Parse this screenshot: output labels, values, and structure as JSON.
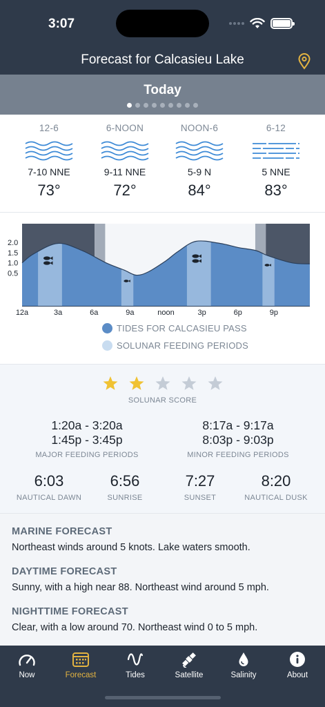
{
  "status": {
    "time": "3:07"
  },
  "header": {
    "title": "Forecast for Calcasieu Lake",
    "day": "Today",
    "page_count": 9,
    "active_page": 0
  },
  "forecast": [
    {
      "period": "12-6",
      "wind": "7-10 NNE",
      "temp": "73°",
      "wave_style": "curly"
    },
    {
      "period": "6-NOON",
      "wind": "9-11 NNE",
      "temp": "72°",
      "wave_style": "curly"
    },
    {
      "period": "NOON-6",
      "wind": "5-9 N",
      "temp": "84°",
      "wave_style": "curly"
    },
    {
      "period": "6-12",
      "wind": "5 NNE",
      "temp": "83°",
      "wave_style": "flat"
    }
  ],
  "tide": {
    "y_ticks": [
      "2.0",
      "1.5",
      "1.0",
      "0.5"
    ],
    "x_ticks": [
      "12a",
      "3a",
      "6a",
      "9a",
      "noon",
      "3p",
      "6p",
      "9p"
    ],
    "legend_tides": "TIDES FOR CALCASIEU PASS",
    "legend_solunar": "SOLUNAR FEEDING PERIODS",
    "colors": {
      "tide": "#5b8cc6",
      "solunar": "#c8dcf0",
      "night": "#4c5667",
      "twilight": "#a2abb8"
    },
    "heights": [
      [
        0,
        1.0
      ],
      [
        1,
        1.45
      ],
      [
        3,
        1.95
      ],
      [
        5,
        1.6
      ],
      [
        7,
        1.0
      ],
      [
        8.5,
        0.65
      ],
      [
        9.5,
        0.4
      ],
      [
        10.5,
        0.55
      ],
      [
        12,
        1.1
      ],
      [
        13,
        1.55
      ],
      [
        14.5,
        2.05
      ],
      [
        16.5,
        1.95
      ],
      [
        18,
        1.75
      ],
      [
        19.5,
        1.6
      ],
      [
        20.5,
        1.35
      ],
      [
        22.5,
        1.0
      ],
      [
        24,
        0.95
      ]
    ]
  },
  "solunar": {
    "score": 2,
    "max_score": 5,
    "score_label": "SOLUNAR SCORE",
    "major_times": [
      "1:20a - 3:20a",
      "1:45p - 3:45p"
    ],
    "major_label": "MAJOR FEEDING PERIODS",
    "minor_times": [
      "8:17a - 9:17a",
      "8:03p - 9:03p"
    ],
    "minor_label": "MINOR FEEDING PERIODS",
    "sun": [
      {
        "time": "6:03",
        "label": "NAUTICAL DAWN"
      },
      {
        "time": "6:56",
        "label": "SUNRISE"
      },
      {
        "time": "7:27",
        "label": "SUNSET"
      },
      {
        "time": "8:20",
        "label": "NAUTICAL DUSK"
      }
    ]
  },
  "sections": [
    {
      "head": "MARINE FORECAST",
      "body": "Northeast winds around 5 knots. Lake waters smooth."
    },
    {
      "head": "DAYTIME FORECAST",
      "body": "Sunny, with a high near 88. Northeast wind around 5 mph."
    },
    {
      "head": "NIGHTTIME FORECAST",
      "body": "Clear, with a low around 70. Northeast wind 0 to 5 mph."
    }
  ],
  "tabs": [
    {
      "label": "Now",
      "icon": "gauge-icon",
      "active": false
    },
    {
      "label": "Forecast",
      "icon": "calendar-icon",
      "active": true
    },
    {
      "label": "Tides",
      "icon": "sine-wave-icon",
      "active": false
    },
    {
      "label": "Satellite",
      "icon": "satellite-icon",
      "active": false
    },
    {
      "label": "Salinity",
      "icon": "water-drop-icon",
      "active": false
    },
    {
      "label": "About",
      "icon": "info-icon",
      "active": false
    }
  ],
  "accent_color": "#e3b341"
}
